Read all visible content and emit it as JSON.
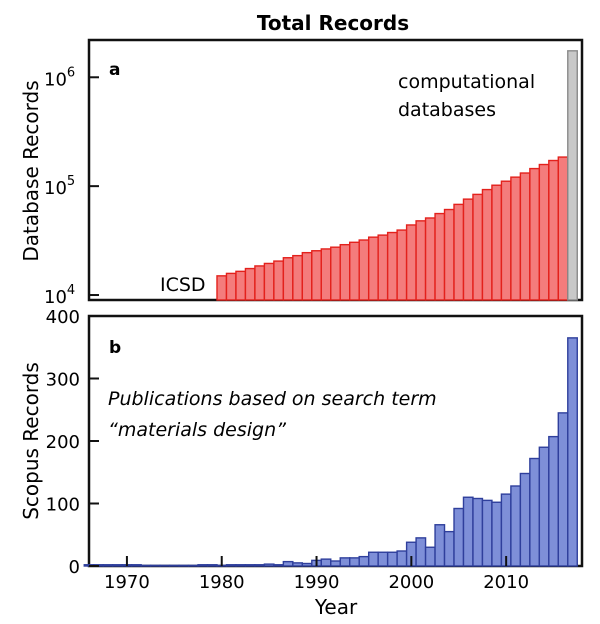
{
  "chart_data": [
    {
      "panel_label": "a",
      "type": "bar",
      "title": "Total Records",
      "ylabel": "Database Records",
      "yscale": "log",
      "ylim": [
        9000,
        2200000
      ],
      "xlim": [
        1966,
        2018
      ],
      "yticks": [
        {
          "value": 10000,
          "base": "10",
          "exp": "4"
        },
        {
          "value": 100000,
          "base": "10",
          "exp": "5"
        },
        {
          "value": 1000000,
          "base": "10",
          "exp": "6"
        }
      ],
      "annotations": {
        "icsd": "ICSD",
        "computational_line1": "computational",
        "computational_line2": "databases"
      },
      "colors": {
        "icsd_fill": "#f47c7c",
        "icsd_edge": "#e3211c",
        "comp_fill": "#c8c8c8",
        "comp_edge": "#8a8a8a"
      },
      "series": [
        {
          "name": "ICSD",
          "x": [
            1980,
            1981,
            1982,
            1983,
            1984,
            1985,
            1986,
            1987,
            1988,
            1989,
            1990,
            1991,
            1992,
            1993,
            1994,
            1995,
            1996,
            1997,
            1998,
            1999,
            2000,
            2001,
            2002,
            2003,
            2004,
            2005,
            2006,
            2007,
            2008,
            2009,
            2010,
            2011,
            2012,
            2013,
            2014,
            2015,
            2016
          ],
          "values": [
            15000,
            15800,
            16500,
            17500,
            18500,
            19500,
            20500,
            22000,
            23000,
            24500,
            25500,
            26500,
            27500,
            29000,
            30500,
            32000,
            34000,
            35500,
            37500,
            39500,
            44000,
            48000,
            51000,
            56000,
            61000,
            68000,
            76000,
            84000,
            93000,
            102000,
            111000,
            121000,
            132000,
            145000,
            158000,
            172000,
            185000
          ]
        },
        {
          "name": "computational databases",
          "x": [
            2017
          ],
          "values": [
            1750000
          ]
        }
      ]
    },
    {
      "panel_label": "b",
      "type": "bar",
      "ylabel": "Scopus Records",
      "xlabel": "Year",
      "ylim": [
        0,
        400
      ],
      "xlim": [
        1966,
        2018
      ],
      "yticks": [
        0,
        100,
        200,
        300,
        400
      ],
      "xticks": [
        1970,
        1980,
        1990,
        2000,
        2010
      ],
      "annotations": {
        "line1": "Publications based on search term",
        "line2": "“materials design”"
      },
      "colors": {
        "fill": "#7e8fd8",
        "edge": "#2f3f9c"
      },
      "x": [
        1966,
        1967,
        1968,
        1969,
        1970,
        1971,
        1972,
        1973,
        1974,
        1975,
        1976,
        1977,
        1978,
        1979,
        1980,
        1981,
        1982,
        1983,
        1984,
        1985,
        1986,
        1987,
        1988,
        1989,
        1990,
        1991,
        1992,
        1993,
        1994,
        1995,
        1996,
        1997,
        1998,
        1999,
        2000,
        2001,
        2002,
        2003,
        2004,
        2005,
        2006,
        2007,
        2008,
        2009,
        2010,
        2011,
        2012,
        2013,
        2014,
        2015,
        2016,
        2017
      ],
      "values": [
        2,
        2,
        2,
        2,
        2,
        2,
        1,
        1,
        1,
        1,
        1,
        1,
        2,
        2,
        1,
        2,
        2,
        2,
        2,
        3,
        2,
        7,
        5,
        4,
        9,
        11,
        8,
        13,
        13,
        15,
        22,
        22,
        22,
        24,
        38,
        45,
        30,
        66,
        55,
        92,
        110,
        108,
        105,
        102,
        115,
        128,
        148,
        172,
        190,
        207,
        245,
        365
      ]
    }
  ]
}
